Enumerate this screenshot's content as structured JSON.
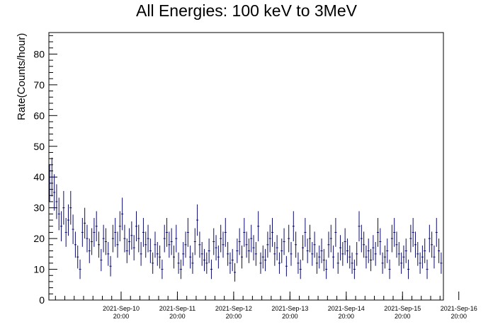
{
  "chart_data": {
    "type": "scatter",
    "title": "All Energies:  100 keV to 3MeV",
    "xlabel": "",
    "ylabel": "Rate(Counts/hour)",
    "ylim": [
      0,
      87
    ],
    "xlim_days": [
      9.55,
      16.56
    ],
    "yticks": [
      0,
      10,
      20,
      30,
      40,
      50,
      60,
      70,
      80
    ],
    "xticks": [
      {
        "date": "2021-Sep-10",
        "time": "20:00"
      },
      {
        "date": "2021-Sep-11",
        "time": "20:00"
      },
      {
        "date": "2021-Sep-12",
        "time": "20:00"
      },
      {
        "date": "2021-Sep-13",
        "time": "20:00"
      },
      {
        "date": "2021-Sep-14",
        "time": "20:00"
      },
      {
        "date": "2021-Sep-15",
        "time": "20:00"
      },
      {
        "date": "2021-Sep-16",
        "time": "20:00"
      }
    ],
    "grid": false,
    "marker_color": "#0b0b6e",
    "series": [
      {
        "name": "",
        "x_start": "2021-Sep-09 13:00",
        "x_step_hours": 1,
        "values": [
          38,
          40,
          35,
          32,
          28,
          24,
          30,
          22,
          26,
          30,
          23,
          18,
          14,
          10,
          22,
          25,
          20,
          16,
          19,
          22,
          24,
          18,
          13,
          20,
          19,
          15,
          11,
          20,
          22,
          18,
          24,
          28,
          20,
          16,
          19,
          21,
          17,
          24,
          20,
          15,
          22,
          18,
          20,
          16,
          12,
          18,
          15,
          14,
          10,
          20,
          22,
          18,
          19,
          14,
          20,
          12,
          10,
          15,
          18,
          22,
          14,
          12,
          19,
          26,
          18,
          15,
          13,
          12,
          16,
          10,
          19,
          17,
          14,
          20,
          18,
          22,
          15,
          12,
          13,
          9,
          16,
          19,
          14,
          22,
          18,
          16,
          20,
          17,
          15,
          24,
          12,
          14,
          13,
          18,
          20,
          22,
          15,
          17,
          12,
          16,
          19,
          11,
          20,
          15,
          24,
          18,
          12,
          10,
          17,
          22,
          16,
          20,
          15,
          18,
          12,
          14,
          16,
          13,
          10,
          18,
          20,
          14,
          22,
          12,
          17,
          15,
          19,
          16,
          14,
          12,
          10,
          15,
          24,
          20,
          18,
          14,
          16,
          13,
          17,
          15,
          22,
          19,
          12,
          14,
          16,
          10,
          20,
          22,
          18,
          15,
          12,
          14,
          16,
          10,
          20,
          22,
          18,
          15,
          12,
          14,
          16,
          10,
          20,
          18,
          14,
          22,
          16,
          12,
          18,
          20,
          15,
          17,
          13,
          19,
          16,
          14,
          22,
          24,
          18,
          15,
          20,
          16,
          12,
          14,
          18,
          22,
          16,
          15,
          13,
          17,
          19,
          20,
          16,
          14,
          12,
          18,
          22,
          15,
          13,
          10,
          17,
          8,
          16,
          12,
          14,
          18,
          15,
          12,
          20,
          15,
          17,
          14,
          12,
          10,
          16,
          18,
          14,
          8,
          4,
          16,
          14,
          20,
          12,
          10,
          15,
          13,
          17,
          11,
          14,
          18,
          16,
          15,
          13,
          17,
          20,
          18,
          16,
          15,
          14,
          19,
          17,
          12,
          20,
          10,
          8,
          14,
          16,
          18,
          20,
          10,
          15,
          8,
          12,
          16,
          18,
          23,
          12,
          10,
          13
        ]
      }
    ]
  }
}
